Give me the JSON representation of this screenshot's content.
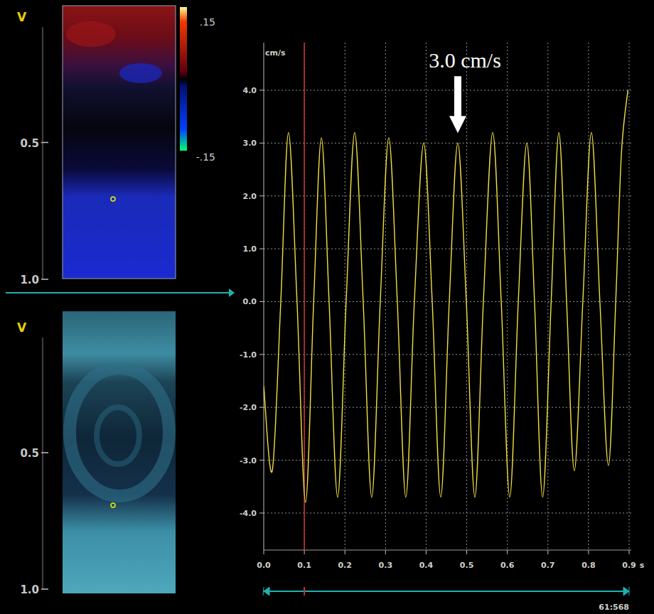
{
  "chart_data": {
    "type": "line",
    "y_label": "cm/s",
    "x_label": "s",
    "x": [
      0,
      0.021,
      0.042,
      0.061,
      0.082,
      0.103,
      0.123,
      0.142,
      0.161,
      0.182,
      0.203,
      0.224,
      0.245,
      0.266,
      0.287,
      0.308,
      0.329,
      0.35,
      0.371,
      0.394,
      0.415,
      0.436,
      0.457,
      0.478,
      0.499,
      0.52,
      0.541,
      0.564,
      0.585,
      0.606,
      0.627,
      0.648,
      0.667,
      0.687,
      0.708,
      0.727,
      0.746,
      0.765,
      0.786,
      0.807,
      0.828,
      0.849,
      0.867,
      0.881,
      0.897
    ],
    "series": [
      {
        "color": "#f0e040",
        "values": [
          -1.6,
          -3.2,
          0,
          3.2,
          0,
          -3.8,
          0,
          3.1,
          0,
          -3.7,
          0,
          3.2,
          0,
          -3.7,
          0,
          3.1,
          0,
          -3.7,
          0,
          3.0,
          0,
          -3.7,
          0,
          3.0,
          0,
          -3.7,
          0,
          3.2,
          0,
          -3.7,
          0,
          3.0,
          0,
          -3.7,
          0,
          3.2,
          0,
          -3.2,
          0,
          3.2,
          0,
          -3.1,
          0,
          2.8,
          4.0
        ]
      }
    ],
    "xlim": [
      0,
      0.9
    ],
    "xticks": [
      {
        "value": 0,
        "label": "0.0"
      },
      0.1,
      0.2,
      0.3,
      0.4,
      0.5,
      0.6,
      0.7,
      0.8,
      0.9
    ],
    "ylim": [
      -4.7,
      4.9
    ],
    "yticks": [
      {
        "value": 4,
        "label": "4.0"
      },
      {
        "value": 3,
        "label": "3.0"
      },
      {
        "value": 2,
        "label": "2.0"
      },
      {
        "value": 1,
        "label": "1.0"
      },
      {
        "value": 0,
        "label": "0.0"
      },
      {
        "value": -1,
        "label": "-1.0"
      },
      {
        "value": -2,
        "label": "-2.0"
      },
      {
        "value": -3,
        "label": "-3.0"
      },
      {
        "value": -4,
        "label": "-4.0"
      }
    ],
    "grid": true,
    "annotations": [
      {
        "text": "3.0 cm/s",
        "x": 0.478,
        "y": 3.0
      }
    ],
    "vlines": [
      0.1
    ]
  },
  "panels": [
    {
      "axis_label": "V",
      "ylim": [
        0,
        1
      ],
      "ticks": [
        0.5,
        {
          "value": 1,
          "label": "1.0"
        }
      ],
      "colorbar": {
        "range": [
          -0.15,
          0.15
        ],
        "ticks": [
          {
            "value": 0.15,
            "label": ".15"
          },
          {
            "value": -0.15,
            "label": "-.15"
          }
        ]
      }
    },
    {
      "axis_label": "V",
      "ylim": [
        0,
        1
      ],
      "ticks": [
        0.5,
        {
          "value": 1,
          "label": "1.0"
        }
      ]
    }
  ],
  "frame_counter": "61:568"
}
